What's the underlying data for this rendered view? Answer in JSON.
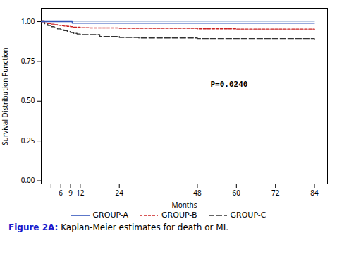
{
  "chart_data": {
    "type": "step",
    "xlabel": "Months",
    "ylabel": "Survival Distribution Function",
    "xlim": [
      0,
      88
    ],
    "xticks": [
      {
        "value": 3,
        "label": null
      },
      6,
      9,
      12,
      24,
      48,
      60,
      72,
      84
    ],
    "ylim": [
      -0.02,
      1.08
    ],
    "yticks": [
      {
        "value": 0.0,
        "label": "0.00"
      },
      {
        "value": 0.25,
        "label": "0.25"
      },
      {
        "value": 0.5,
        "label": "0.50"
      },
      {
        "value": 0.75,
        "label": "0.75"
      },
      {
        "value": 1.0,
        "label": "1.00"
      }
    ],
    "grid": false,
    "legend": "bottom",
    "series": [
      {
        "name": "GROUP-A",
        "color": "#3355bb",
        "line_style": "solid",
        "x": [
          0,
          0.5,
          1.0,
          2.0,
          3.0,
          9.0,
          9.5,
          84
        ],
        "values": [
          1.0,
          1.0,
          1.0,
          1.0,
          1.0,
          1.0,
          0.99,
          0.99
        ]
      },
      {
        "name": "GROUP-B",
        "color": "#cc2222",
        "line_style": "dashed",
        "x": [
          0,
          1,
          2,
          3,
          4,
          5,
          6,
          7,
          8,
          9,
          10,
          12,
          15,
          24,
          48,
          60,
          84
        ],
        "values": [
          1.0,
          0.992,
          0.988,
          0.984,
          0.98,
          0.977,
          0.974,
          0.972,
          0.97,
          0.968,
          0.965,
          0.962,
          0.96,
          0.958,
          0.955,
          0.953,
          0.951
        ]
      },
      {
        "name": "GROUP-C",
        "color": "#333333",
        "line_style": "longdash",
        "x": [
          0,
          1,
          2,
          3,
          4,
          5,
          6,
          7,
          8,
          9,
          10,
          11,
          12,
          18,
          24,
          30,
          48,
          84
        ],
        "values": [
          1.0,
          0.987,
          0.976,
          0.968,
          0.961,
          0.954,
          0.948,
          0.943,
          0.937,
          0.931,
          0.926,
          0.922,
          0.918,
          0.906,
          0.9,
          0.897,
          0.893,
          0.89
        ]
      }
    ],
    "reference_line": {
      "color": "#aabbdd",
      "x": [
        0,
        84
      ],
      "values": [
        1.0,
        1.0
      ]
    },
    "annotations": [
      {
        "text": "P=0.0240",
        "x": 52,
        "y": 0.59
      }
    ],
    "caption": {
      "bold": "Figure 2A:",
      "bold_color": "#1a1acc",
      "text": " Kaplan-Meier estimates for death or MI."
    }
  }
}
